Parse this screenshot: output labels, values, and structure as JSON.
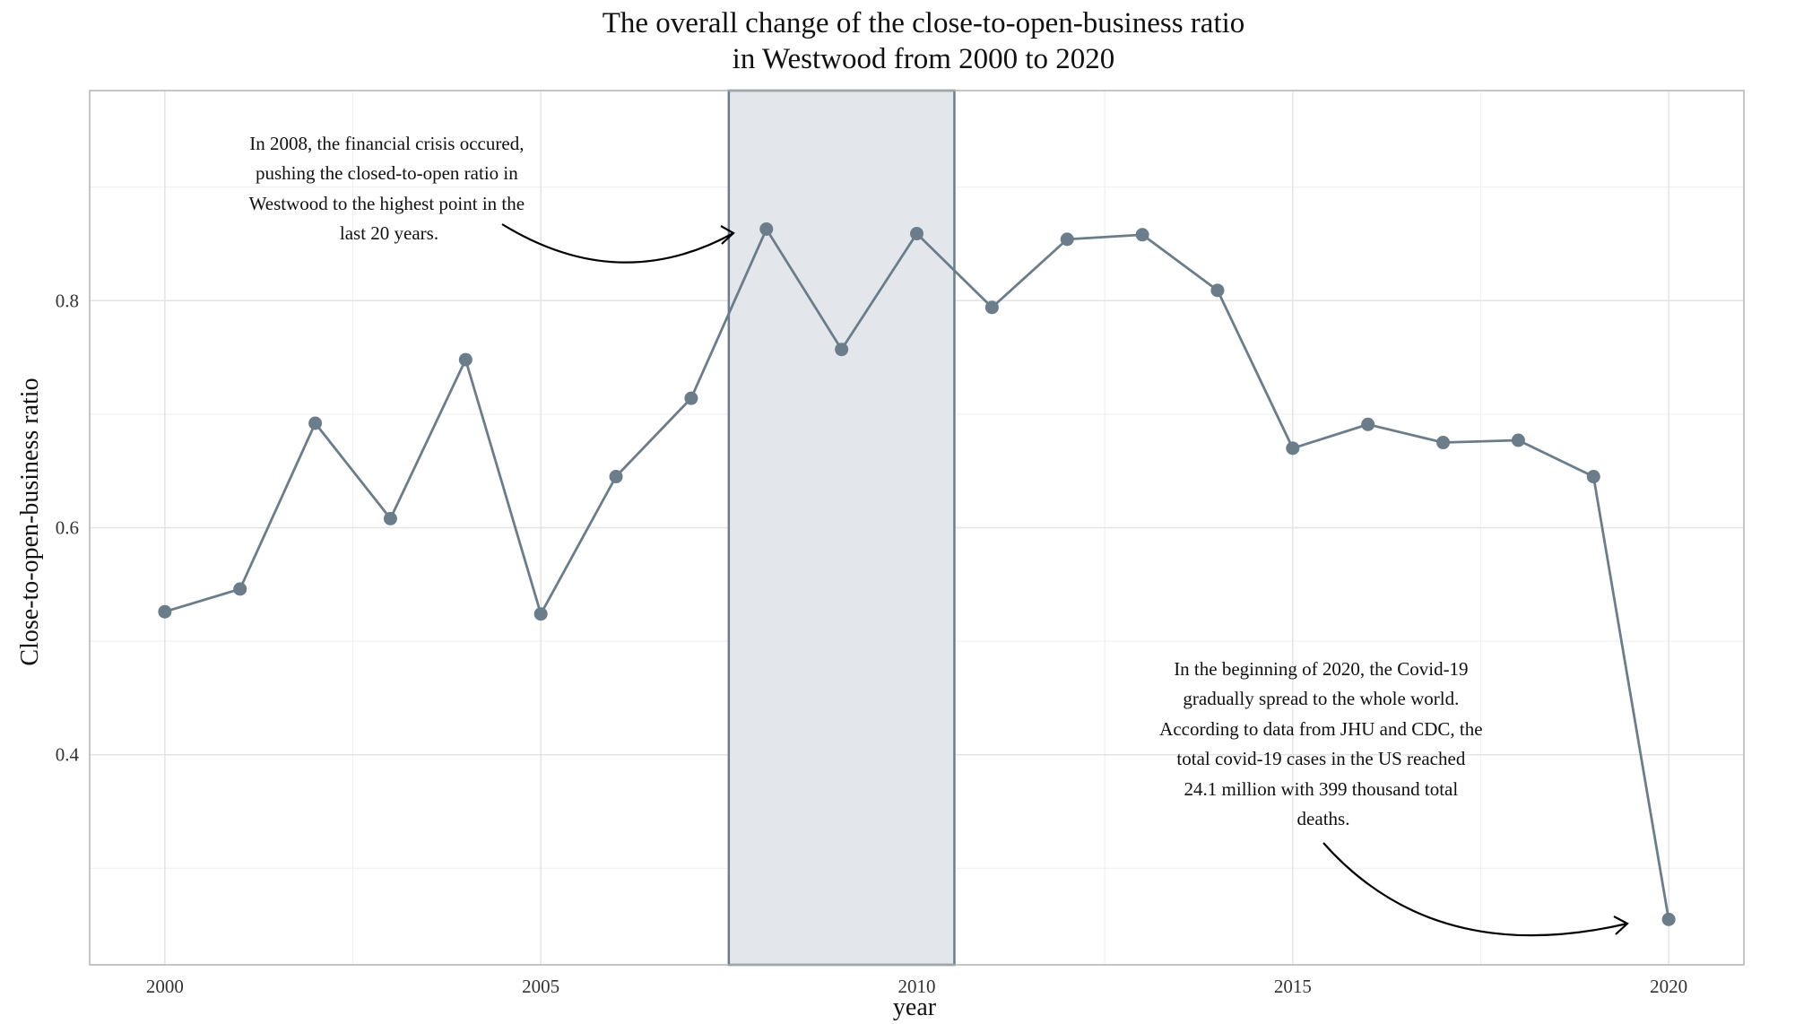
{
  "chart_data": {
    "type": "line",
    "title_lines": [
      "The overall change of the close-to-open-business ratio",
      "in Westwood from 2000 to 2020"
    ],
    "xlabel": "year",
    "ylabel": "Close-to-open-business ratio",
    "x": [
      2000,
      2001,
      2002,
      2003,
      2004,
      2005,
      2006,
      2007,
      2008,
      2009,
      2010,
      2011,
      2012,
      2013,
      2014,
      2015,
      2016,
      2017,
      2018,
      2019,
      2020
    ],
    "values": [
      0.526,
      0.546,
      0.692,
      0.608,
      0.748,
      0.524,
      0.645,
      0.714,
      0.863,
      0.757,
      0.859,
      0.794,
      0.854,
      0.858,
      0.809,
      0.67,
      0.691,
      0.675,
      0.677,
      0.645,
      0.255
    ],
    "xlim": [
      1999,
      2021
    ],
    "ylim": [
      0.215,
      0.985
    ],
    "x_ticks": [
      2000,
      2005,
      2010,
      2015,
      2020
    ],
    "x_tick_labels": [
      "2000",
      "2005",
      "2010",
      "2015",
      "2020"
    ],
    "y_ticks": [
      0.4,
      0.6,
      0.8
    ],
    "y_tick_labels": [
      "0.4",
      "0.6",
      "0.8"
    ],
    "highlight_range": [
      2007.5,
      2010.5
    ],
    "grid": true,
    "line_color": "#6b7d8b",
    "highlight_fill": "#e2e6ea",
    "annotations": [
      {
        "lines": [
          "In 2008, the financial crisis occured,",
          "pushing the closed-to-open ratio in",
          "Westwood to the highest point in the",
          "last 20 years."
        ]
      },
      {
        "lines": [
          "In the beginning of 2020, the Covid-19",
          "gradually spread to the whole world.",
          "According to data from JHU and CDC, the",
          "total covid-19 cases in the US reached",
          "24.1 million with 399 thousand total",
          "deaths."
        ]
      }
    ]
  }
}
